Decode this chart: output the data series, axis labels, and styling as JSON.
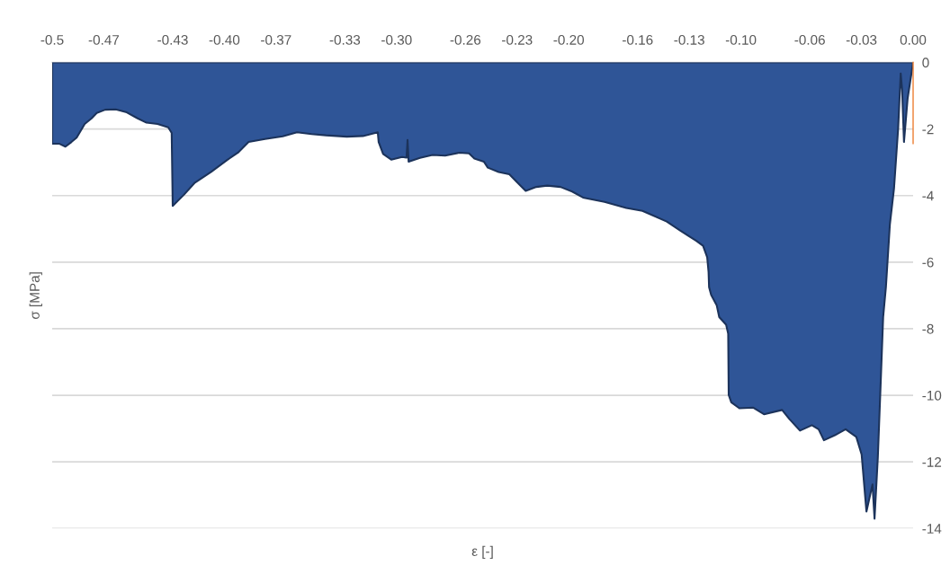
{
  "chart_data": {
    "type": "area",
    "xlabel": "ε [-]",
    "ylabel": "σ [MPa]",
    "xlim": [
      -0.5,
      0
    ],
    "ylim": [
      -14,
      0
    ],
    "xticks": [
      -0.5,
      -0.47,
      -0.43,
      {
        "value": -0.4,
        "label": "-0.40"
      },
      -0.37,
      -0.33,
      {
        "value": -0.3,
        "label": "-0.30"
      },
      -0.26,
      -0.23,
      {
        "value": -0.2,
        "label": "-0.20"
      },
      -0.16,
      -0.13,
      {
        "value": -0.1,
        "label": "-0.10"
      },
      -0.06,
      -0.03,
      {
        "value": 0,
        "label": "0.00"
      }
    ],
    "yticks": [
      0,
      -2,
      -4,
      -6,
      -8,
      -10,
      -12,
      -14
    ],
    "grid": "y",
    "series": [
      {
        "color": "#2f5597",
        "x": [
          -0.5,
          -0.496,
          -0.4923,
          -0.4888,
          -0.4858,
          -0.4811,
          -0.4771,
          -0.4741,
          -0.4692,
          -0.4631,
          -0.4567,
          -0.4504,
          -0.4452,
          -0.4388,
          -0.4326,
          -0.4306,
          -0.43,
          -0.4234,
          -0.4171,
          -0.4077,
          -0.3984,
          -0.3921,
          -0.3859,
          -0.3764,
          -0.3661,
          -0.3578,
          -0.3494,
          -0.341,
          -0.3289,
          -0.3195,
          -0.3109,
          -0.3104,
          -0.3078,
          -0.3031,
          -0.2968,
          -0.2942,
          -0.2936,
          -0.293,
          -0.2864,
          -0.2791,
          -0.2718,
          -0.2635,
          -0.2579,
          -0.2548,
          -0.2493,
          -0.247,
          -0.2407,
          -0.2345,
          -0.2298,
          -0.225,
          -0.2188,
          -0.2125,
          -0.2048,
          -0.198,
          -0.1917,
          -0.1792,
          -0.1666,
          -0.1572,
          -0.1509,
          -0.1431,
          -0.1353,
          -0.1259,
          -0.122,
          -0.1196,
          -0.1188,
          -0.1185,
          -0.1173,
          -0.1141,
          -0.1126,
          -0.1086,
          -0.1074,
          -0.1071,
          -0.1056,
          -0.1009,
          -0.0928,
          -0.0866,
          -0.0761,
          -0.0719,
          -0.0657,
          -0.0588,
          -0.0549,
          -0.0518,
          -0.0455,
          -0.0392,
          -0.033,
          -0.0299,
          -0.0271,
          -0.0236,
          -0.0224,
          -0.0205,
          -0.0189,
          -0.0174,
          -0.0158,
          -0.0135,
          -0.0111,
          -0.0087,
          -0.0072,
          -0.0064,
          -0.0053,
          -0.0032,
          0
        ],
        "values": [
          -2.44,
          -2.44,
          -2.53,
          -2.39,
          -2.26,
          -1.85,
          -1.68,
          -1.52,
          -1.42,
          -1.41,
          -1.5,
          -1.68,
          -1.81,
          -1.85,
          -1.95,
          -2.12,
          -4.31,
          -3.97,
          -3.61,
          -3.29,
          -2.93,
          -2.71,
          -2.39,
          -2.3,
          -2.22,
          -2.1,
          -2.15,
          -2.19,
          -2.23,
          -2.21,
          -2.1,
          -2.39,
          -2.75,
          -2.92,
          -2.84,
          -2.86,
          -2.33,
          -2.98,
          -2.87,
          -2.78,
          -2.8,
          -2.71,
          -2.73,
          -2.89,
          -2.98,
          -3.16,
          -3.29,
          -3.36,
          -3.61,
          -3.86,
          -3.74,
          -3.7,
          -3.74,
          -3.88,
          -4.06,
          -4.19,
          -4.37,
          -4.46,
          -4.6,
          -4.78,
          -5.05,
          -5.36,
          -5.51,
          -5.85,
          -6.3,
          -6.75,
          -6.98,
          -7.29,
          -7.65,
          -7.88,
          -8.15,
          -9.99,
          -10.21,
          -10.39,
          -10.37,
          -10.57,
          -10.44,
          -10.71,
          -11.06,
          -10.9,
          -11.02,
          -11.35,
          -11.2,
          -11.02,
          -11.25,
          -11.78,
          -13.49,
          -12.68,
          -13.71,
          -11.87,
          -9.72,
          -7.65,
          -6.75,
          -4.87,
          -3.79,
          -1.99,
          -0.33,
          -0.82,
          -2.39,
          -1.09,
          0
        ]
      },
      {
        "type": "line",
        "color": "#ed7d31",
        "x": [
          0,
          0
        ],
        "values": [
          0,
          -2.44
        ]
      }
    ]
  }
}
